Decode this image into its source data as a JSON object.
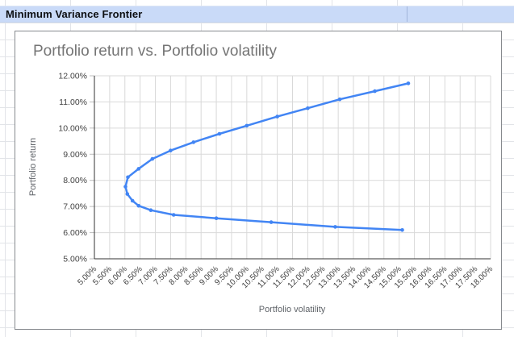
{
  "sheet": {
    "header_cell": {
      "label": "Minimum Variance Frontier",
      "bg_color": "#c9daf8"
    }
  },
  "chart": {
    "title": "Portfolio return vs. Portfolio volatility",
    "xlabel": "Portfolio volatility",
    "ylabel": "Portfolio return",
    "colors": {
      "series": "#4285f4",
      "title": "#757575",
      "tick_label": "#424242",
      "axis_title": "#5f6368",
      "gridline": "#d9d9d9",
      "axis_line": "#333333",
      "tick_mark": "#bdbdbd"
    }
  },
  "chart_data": {
    "type": "line",
    "title": "Portfolio return vs. Portfolio volatility",
    "xlabel": "Portfolio volatility",
    "ylabel": "Portfolio return",
    "grid": true,
    "legend": "none",
    "x_axis": {
      "min": 5,
      "max": 18,
      "tick_step": 0.5,
      "unit": "percent",
      "tick_labels": [
        "5.00%",
        "5.50%",
        "6.00%",
        "6.50%",
        "7.00%",
        "7.50%",
        "8.00%",
        "8.50%",
        "9.00%",
        "9.50%",
        "10.00%",
        "10.50%",
        "11.00%",
        "11.50%",
        "12.00%",
        "12.50%",
        "13.00%",
        "13.50%",
        "14.00%",
        "14.50%",
        "15.00%",
        "15.50%",
        "16.00%",
        "16.50%",
        "17.00%",
        "17.50%",
        "18.00%"
      ]
    },
    "y_axis": {
      "min": 5,
      "max": 12,
      "tick_step": 1,
      "unit": "percent",
      "tick_labels": [
        "5.00%",
        "6.00%",
        "7.00%",
        "8.00%",
        "9.00%",
        "10.00%",
        "11.00%",
        "12.00%"
      ]
    },
    "series": [
      {
        "points_note": "volatility_pct, return_pct — frontier traced from lower-right endpoint through minimum-variance vertex to upper-right endpoint",
        "points": [
          [
            15.1,
            6.1
          ],
          [
            12.9,
            6.22
          ],
          [
            10.8,
            6.4
          ],
          [
            9.0,
            6.55
          ],
          [
            7.6,
            6.68
          ],
          [
            6.85,
            6.86
          ],
          [
            6.45,
            7.03
          ],
          [
            6.25,
            7.22
          ],
          [
            6.08,
            7.48
          ],
          [
            6.02,
            7.76
          ],
          [
            6.1,
            8.12
          ],
          [
            6.45,
            8.44
          ],
          [
            6.9,
            8.82
          ],
          [
            7.5,
            9.14
          ],
          [
            8.25,
            9.46
          ],
          [
            9.1,
            9.78
          ],
          [
            10.0,
            10.09
          ],
          [
            11.0,
            10.44
          ],
          [
            12.0,
            10.76
          ],
          [
            13.05,
            11.1
          ],
          [
            14.2,
            11.41
          ],
          [
            15.3,
            11.71
          ]
        ]
      }
    ]
  }
}
